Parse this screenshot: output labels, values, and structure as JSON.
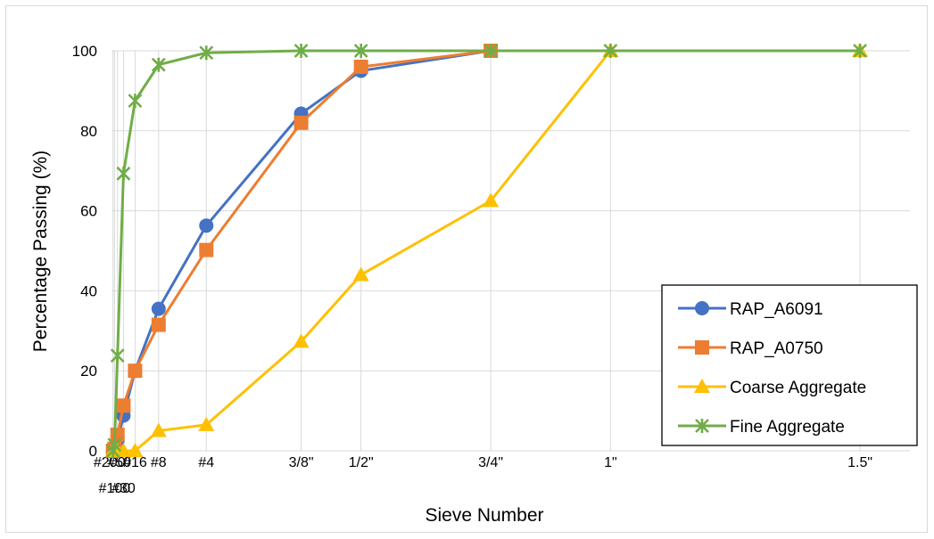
{
  "chart_data": {
    "type": "line",
    "title": "",
    "xlabel": "Sieve Number",
    "ylabel": "Percentage Passing (%)",
    "ylim": [
      0,
      100
    ],
    "yticks": [
      "0",
      "20",
      "40",
      "60",
      "80",
      "100"
    ],
    "grid": true,
    "legend_position": "bottom-right",
    "categories": [
      "#200",
      "#100",
      "#50",
      "#30",
      "#16",
      "#8",
      "#4",
      "3/8\"",
      "1/2\"",
      "3/4\"",
      "1\"",
      "1.5\""
    ],
    "x_sizes_mm": [
      0.075,
      0.15,
      0.3,
      0.6,
      1.18,
      2.36,
      4.75,
      9.5,
      12.5,
      19,
      25,
      37.5
    ],
    "series": [
      {
        "name": "RAP_A6091",
        "color": "#4472c4",
        "marker": "circle",
        "values": [
          0,
          0.5,
          2.5,
          8.8,
          20,
          35.5,
          56.3,
          84.3,
          95,
          100,
          null,
          null
        ]
      },
      {
        "name": "RAP_A0750",
        "color": "#ed7d31",
        "marker": "square",
        "values": [
          0,
          0.5,
          4,
          11.3,
          20,
          31.5,
          50.2,
          82,
          96,
          100,
          null,
          null
        ]
      },
      {
        "name": "Coarse Aggregate",
        "color": "#ffc000",
        "marker": "triangle",
        "values": [
          0,
          0,
          0,
          0,
          0,
          5,
          6.5,
          27.3,
          44,
          62.5,
          100,
          100
        ]
      },
      {
        "name": "Fine Aggregate",
        "color": "#70ad47",
        "marker": "star",
        "values": [
          0,
          1.5,
          23.8,
          69.3,
          87.5,
          96.5,
          99.5,
          100,
          100,
          100,
          100,
          100
        ]
      }
    ]
  }
}
